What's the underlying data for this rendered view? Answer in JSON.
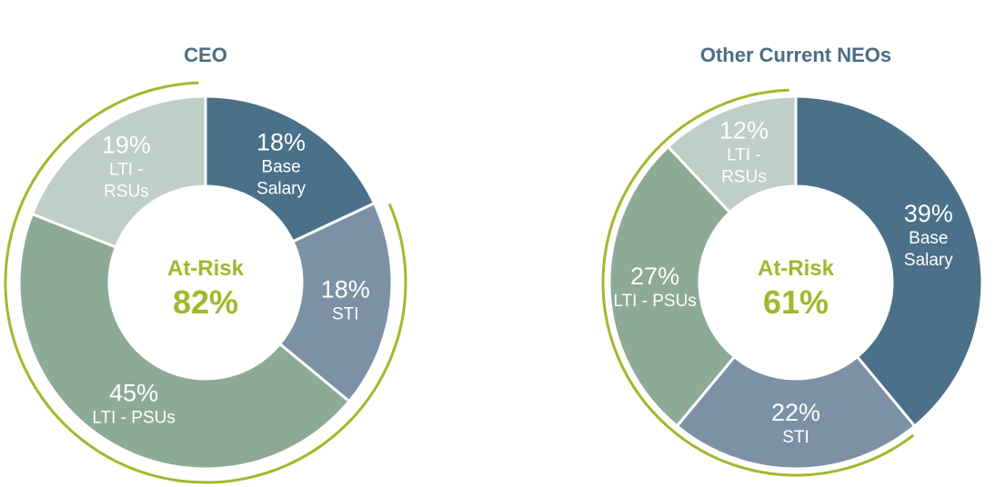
{
  "colors": {
    "title": "#4a6d85",
    "accent": "#a3b72c",
    "base_salary": "#4b7089",
    "sti": "#7c91a6",
    "lti_psus": "#8daa97",
    "lti_rsus": "#bfcec6"
  },
  "chart_data": [
    {
      "type": "pie",
      "title": "CEO",
      "center_label": "At-Risk",
      "center_value": "82%",
      "slices": [
        {
          "pct_label": "18%",
          "label_lines": [
            "Base",
            "Salary"
          ],
          "value": 18,
          "color_key": "base_salary"
        },
        {
          "pct_label": "18%",
          "label_lines": [
            "STI"
          ],
          "value": 18,
          "color_key": "sti"
        },
        {
          "pct_label": "45%",
          "label_lines": [
            "LTI - PSUs"
          ],
          "value": 45,
          "color_key": "lti_psus"
        },
        {
          "pct_label": "19%",
          "label_lines": [
            "LTI -",
            "RSUs"
          ],
          "value": 19,
          "color_key": "lti_rsus"
        }
      ],
      "at_risk_arc": true
    },
    {
      "type": "pie",
      "title": "Other Current NEOs",
      "center_label": "At-Risk",
      "center_value": "61%",
      "slices": [
        {
          "pct_label": "39%",
          "label_lines": [
            "Base",
            "Salary"
          ],
          "value": 39,
          "color_key": "base_salary"
        },
        {
          "pct_label": "22%",
          "label_lines": [
            "STI"
          ],
          "value": 22,
          "color_key": "sti"
        },
        {
          "pct_label": "27%",
          "label_lines": [
            "LTI - PSUs"
          ],
          "value": 27,
          "color_key": "lti_psus"
        },
        {
          "pct_label": "12%",
          "label_lines": [
            "LTI -",
            "RSUs"
          ],
          "value": 12,
          "color_key": "lti_rsus"
        }
      ],
      "at_risk_arc": true
    }
  ]
}
